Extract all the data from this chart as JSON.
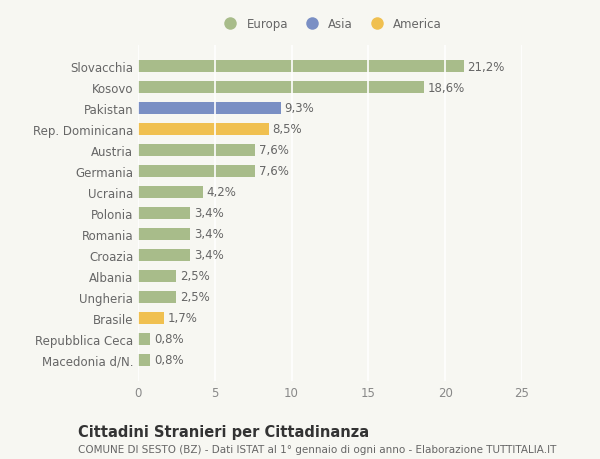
{
  "categories": [
    "Macedonia d/N.",
    "Repubblica Ceca",
    "Brasile",
    "Ungheria",
    "Albania",
    "Croazia",
    "Romania",
    "Polonia",
    "Ucraina",
    "Germania",
    "Austria",
    "Rep. Dominicana",
    "Pakistan",
    "Kosovo",
    "Slovacchia"
  ],
  "values": [
    0.8,
    0.8,
    1.7,
    2.5,
    2.5,
    3.4,
    3.4,
    3.4,
    4.2,
    7.6,
    7.6,
    8.5,
    9.3,
    18.6,
    21.2
  ],
  "labels": [
    "0,8%",
    "0,8%",
    "1,7%",
    "2,5%",
    "2,5%",
    "3,4%",
    "3,4%",
    "3,4%",
    "4,2%",
    "7,6%",
    "7,6%",
    "8,5%",
    "9,3%",
    "18,6%",
    "21,2%"
  ],
  "colors": [
    "#a8bc8a",
    "#a8bc8a",
    "#f0c050",
    "#a8bc8a",
    "#a8bc8a",
    "#a8bc8a",
    "#a8bc8a",
    "#a8bc8a",
    "#a8bc8a",
    "#a8bc8a",
    "#a8bc8a",
    "#f0c050",
    "#7a8fc4",
    "#a8bc8a",
    "#a8bc8a"
  ],
  "legend": [
    {
      "label": "Europa",
      "color": "#a8bc8a"
    },
    {
      "label": "Asia",
      "color": "#7a8fc4"
    },
    {
      "label": "America",
      "color": "#f0c050"
    }
  ],
  "xlim": [
    0,
    25
  ],
  "xticks": [
    0,
    5,
    10,
    15,
    20,
    25
  ],
  "title": "Cittadini Stranieri per Cittadinanza",
  "subtitle": "COMUNE DI SESTO (BZ) - Dati ISTAT al 1° gennaio di ogni anno - Elaborazione TUTTITALIA.IT",
  "background_color": "#f7f7f2",
  "grid_color": "#ffffff",
  "bar_height": 0.55,
  "label_fontsize": 8.5,
  "tick_fontsize": 8.5,
  "title_fontsize": 10.5,
  "subtitle_fontsize": 7.5
}
